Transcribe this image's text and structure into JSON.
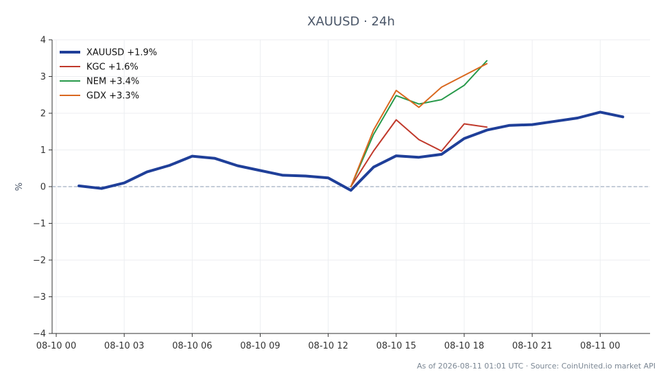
{
  "chart_data": {
    "type": "line",
    "title": "XAUUSD · 24h",
    "ylabel": "%",
    "xlabel": "",
    "ylim": [
      -4,
      4
    ],
    "yticks": [
      "4",
      "3",
      "2",
      "1",
      "0",
      "−1",
      "−2",
      "−3",
      "−4"
    ],
    "ytick_values": [
      4,
      3,
      2,
      1,
      0,
      -1,
      -2,
      -3,
      -4
    ],
    "xticks": [
      "08-10 00",
      "08-10 03",
      "08-10 06",
      "08-10 09",
      "08-10 12",
      "08-10 15",
      "08-10 18",
      "08-10 21",
      "08-11 00"
    ],
    "xtick_hours": [
      0,
      3,
      6,
      9,
      12,
      15,
      18,
      21,
      24
    ],
    "xlim_hours": [
      0,
      26.2
    ],
    "grid": true,
    "zero_line": true,
    "legend_position": "top-left",
    "series": [
      {
        "name": "XAUUSD +1.9%",
        "color": "#1f3f99",
        "primary": true,
        "x": [
          1,
          2,
          3,
          4,
          5,
          6,
          7,
          8,
          9,
          10,
          11,
          12,
          13,
          14,
          15,
          16,
          17,
          18,
          19,
          20,
          21,
          22,
          23,
          24,
          25
        ],
        "y": [
          0.02,
          -0.05,
          0.1,
          0.4,
          0.58,
          0.83,
          0.77,
          0.57,
          0.44,
          0.31,
          0.29,
          0.24,
          -0.1,
          0.53,
          0.84,
          0.8,
          0.88,
          1.31,
          1.54,
          1.67,
          1.69,
          1.78,
          1.87,
          2.03,
          1.9
        ]
      },
      {
        "name": "KGC +1.6%",
        "color": "#c0392b",
        "primary": false,
        "x": [
          13,
          14,
          15,
          16,
          17,
          18,
          19
        ],
        "y": [
          0,
          0.97,
          1.82,
          1.28,
          0.97,
          1.71,
          1.62
        ]
      },
      {
        "name": "NEM +3.4%",
        "color": "#27994a",
        "primary": false,
        "x": [
          13,
          14,
          15,
          16,
          17,
          18,
          19
        ],
        "y": [
          0,
          1.42,
          2.48,
          2.25,
          2.37,
          2.76,
          3.43
        ]
      },
      {
        "name": "GDX +3.3%",
        "color": "#d9681f",
        "primary": false,
        "x": [
          13,
          14,
          15,
          16,
          17,
          18,
          19
        ],
        "y": [
          0,
          1.54,
          2.62,
          2.16,
          2.71,
          3.03,
          3.35
        ]
      }
    ]
  },
  "footer": "As of 2026-08-11 01:01 UTC · Source: CoinUnited.io market API"
}
